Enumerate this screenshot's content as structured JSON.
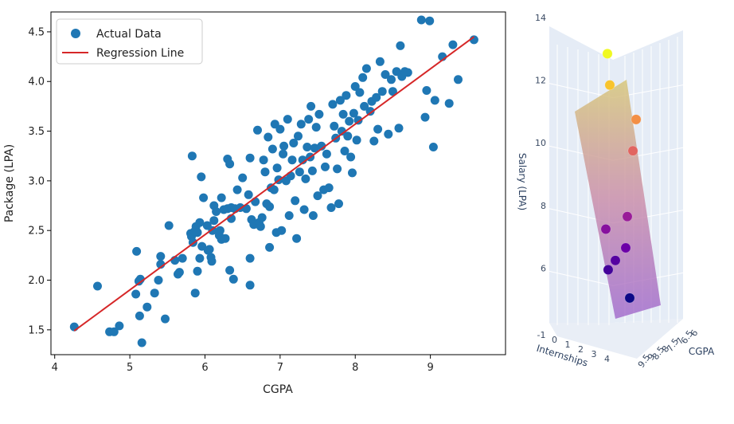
{
  "colors": {
    "points": "#1f77b4",
    "line": "#d62728",
    "axis": "#000000",
    "pane": "#e5ecf6",
    "grid3d": "#ffffff"
  },
  "chart_data": [
    {
      "type": "scatter",
      "title": "",
      "xlabel": "CGPA",
      "ylabel": "Package (LPA)",
      "xlim": [
        3.95,
        10.0
      ],
      "ylim": [
        1.25,
        4.7
      ],
      "x_ticks": [
        "4",
        "5",
        "6",
        "7",
        "8",
        "9"
      ],
      "y_ticks": [
        "1.5",
        "2.0",
        "2.5",
        "3.0",
        "3.5",
        "4.0",
        "4.5"
      ],
      "grid": false,
      "legend": {
        "position": "top-left",
        "entries": [
          {
            "label": "Actual Data",
            "marker": "point"
          },
          {
            "label": "Regression Line",
            "marker": "line"
          }
        ]
      },
      "regression_line": {
        "x": [
          4.26,
          9.58
        ],
        "y": [
          1.49,
          4.45
        ]
      },
      "points": [
        [
          4.26,
          1.53
        ],
        [
          4.57,
          1.94
        ],
        [
          4.73,
          1.48
        ],
        [
          4.79,
          1.48
        ],
        [
          4.86,
          1.54
        ],
        [
          5.09,
          2.29
        ],
        [
          5.12,
          1.99
        ],
        [
          5.14,
          2.01
        ],
        [
          5.08,
          1.86
        ],
        [
          5.13,
          1.64
        ],
        [
          5.16,
          1.37
        ],
        [
          5.23,
          1.73
        ],
        [
          5.33,
          1.87
        ],
        [
          5.41,
          2.24
        ],
        [
          5.41,
          2.16
        ],
        [
          5.38,
          2.0
        ],
        [
          5.47,
          1.61
        ],
        [
          5.52,
          2.55
        ],
        [
          5.6,
          2.2
        ],
        [
          5.64,
          2.06
        ],
        [
          5.66,
          2.08
        ],
        [
          5.7,
          2.22
        ],
        [
          5.83,
          3.25
        ],
        [
          5.81,
          2.47
        ],
        [
          5.82,
          2.44
        ],
        [
          5.84,
          2.38
        ],
        [
          5.86,
          2.49
        ],
        [
          5.88,
          2.54
        ],
        [
          5.9,
          2.48
        ],
        [
          5.93,
          2.58
        ],
        [
          5.9,
          2.09
        ],
        [
          5.87,
          1.87
        ],
        [
          5.93,
          2.22
        ],
        [
          5.96,
          2.34
        ],
        [
          5.95,
          3.04
        ],
        [
          5.98,
          2.83
        ],
        [
          6.03,
          2.55
        ],
        [
          6.04,
          2.3
        ],
        [
          6.06,
          2.31
        ],
        [
          6.08,
          2.23
        ],
        [
          6.1,
          2.5
        ],
        [
          6.09,
          2.19
        ],
        [
          6.12,
          2.75
        ],
        [
          6.12,
          2.6
        ],
        [
          6.15,
          2.69
        ],
        [
          6.19,
          2.45
        ],
        [
          6.2,
          2.5
        ],
        [
          6.22,
          2.41
        ],
        [
          6.22,
          2.83
        ],
        [
          6.25,
          2.71
        ],
        [
          6.27,
          2.42
        ],
        [
          6.3,
          2.72
        ],
        [
          6.3,
          3.22
        ],
        [
          6.33,
          3.17
        ],
        [
          6.35,
          2.62
        ],
        [
          6.35,
          2.73
        ],
        [
          6.33,
          2.1
        ],
        [
          6.38,
          2.01
        ],
        [
          6.4,
          2.72
        ],
        [
          6.43,
          2.91
        ],
        [
          6.47,
          2.73
        ],
        [
          6.5,
          3.03
        ],
        [
          6.55,
          2.72
        ],
        [
          6.58,
          2.86
        ],
        [
          6.6,
          3.23
        ],
        [
          6.6,
          2.22
        ],
        [
          6.6,
          1.95
        ],
        [
          6.62,
          2.61
        ],
        [
          6.65,
          2.56
        ],
        [
          6.67,
          2.79
        ],
        [
          6.7,
          3.51
        ],
        [
          6.72,
          2.58
        ],
        [
          6.74,
          2.54
        ],
        [
          6.76,
          2.63
        ],
        [
          6.78,
          3.21
        ],
        [
          6.8,
          3.09
        ],
        [
          6.82,
          2.77
        ],
        [
          6.84,
          3.44
        ],
        [
          6.86,
          2.33
        ],
        [
          6.86,
          2.74
        ],
        [
          6.88,
          2.93
        ],
        [
          6.9,
          3.32
        ],
        [
          6.92,
          2.91
        ],
        [
          6.93,
          3.57
        ],
        [
          6.95,
          2.48
        ],
        [
          6.96,
          3.13
        ],
        [
          6.98,
          3.01
        ],
        [
          7.0,
          3.52
        ],
        [
          7.02,
          2.5
        ],
        [
          7.04,
          3.27
        ],
        [
          7.05,
          3.35
        ],
        [
          7.08,
          3.0
        ],
        [
          7.1,
          3.62
        ],
        [
          7.12,
          2.65
        ],
        [
          7.14,
          3.05
        ],
        [
          7.16,
          3.21
        ],
        [
          7.18,
          3.38
        ],
        [
          7.2,
          2.8
        ],
        [
          7.22,
          2.42
        ],
        [
          7.24,
          3.45
        ],
        [
          7.26,
          3.09
        ],
        [
          7.28,
          3.57
        ],
        [
          7.3,
          3.21
        ],
        [
          7.32,
          2.71
        ],
        [
          7.34,
          3.02
        ],
        [
          7.36,
          3.34
        ],
        [
          7.38,
          3.62
        ],
        [
          7.4,
          3.24
        ],
        [
          7.41,
          3.75
        ],
        [
          7.43,
          3.1
        ],
        [
          7.44,
          2.65
        ],
        [
          7.46,
          3.33
        ],
        [
          7.48,
          3.54
        ],
        [
          7.5,
          2.85
        ],
        [
          7.52,
          3.67
        ],
        [
          7.55,
          3.35
        ],
        [
          7.58,
          2.91
        ],
        [
          7.6,
          3.14
        ],
        [
          7.62,
          3.27
        ],
        [
          7.65,
          2.93
        ],
        [
          7.68,
          2.73
        ],
        [
          7.7,
          3.77
        ],
        [
          7.72,
          3.55
        ],
        [
          7.74,
          3.43
        ],
        [
          7.76,
          3.12
        ],
        [
          7.78,
          2.77
        ],
        [
          7.8,
          3.81
        ],
        [
          7.82,
          3.5
        ],
        [
          7.84,
          3.67
        ],
        [
          7.86,
          3.3
        ],
        [
          7.88,
          3.86
        ],
        [
          7.9,
          3.45
        ],
        [
          7.92,
          3.6
        ],
        [
          7.94,
          3.24
        ],
        [
          7.96,
          3.08
        ],
        [
          7.98,
          3.68
        ],
        [
          8.0,
          3.95
        ],
        [
          8.02,
          3.41
        ],
        [
          8.04,
          3.61
        ],
        [
          8.06,
          3.89
        ],
        [
          8.1,
          4.04
        ],
        [
          8.12,
          3.75
        ],
        [
          8.15,
          4.13
        ],
        [
          8.2,
          3.7
        ],
        [
          8.22,
          3.8
        ],
        [
          8.25,
          3.4
        ],
        [
          8.28,
          3.84
        ],
        [
          8.3,
          3.52
        ],
        [
          8.33,
          4.2
        ],
        [
          8.36,
          3.9
        ],
        [
          8.4,
          4.07
        ],
        [
          8.44,
          3.47
        ],
        [
          8.48,
          4.02
        ],
        [
          8.5,
          3.9
        ],
        [
          8.55,
          4.1
        ],
        [
          8.58,
          3.53
        ],
        [
          8.6,
          4.36
        ],
        [
          8.62,
          4.05
        ],
        [
          8.66,
          4.1
        ],
        [
          8.7,
          4.09
        ],
        [
          8.88,
          4.62
        ],
        [
          8.93,
          3.64
        ],
        [
          8.95,
          3.91
        ],
        [
          8.99,
          4.61
        ],
        [
          9.04,
          3.34
        ],
        [
          9.06,
          3.81
        ],
        [
          9.16,
          4.25
        ],
        [
          9.25,
          3.78
        ],
        [
          9.3,
          4.37
        ],
        [
          9.37,
          4.02
        ],
        [
          9.58,
          4.42
        ]
      ]
    },
    {
      "type": "scatter3d",
      "title": "",
      "zlabel": "Salary (LPA)",
      "xlabel": "Internships",
      "ylabel": "CGPA",
      "z_ticks": [
        "6",
        "8",
        "10",
        "12",
        "14"
      ],
      "x_ticks": [
        "-1",
        "0",
        "1",
        "2",
        "3",
        "4"
      ],
      "y_ticks": [
        "6",
        "6.5",
        "7",
        "7.5",
        "8",
        "8.5",
        "9",
        "9.5"
      ],
      "colorscale": [
        "#0d0887",
        "#6a00a8",
        "#b12a90",
        "#e16462",
        "#fca636",
        "#f0f921"
      ],
      "plane": "regression surface",
      "points": [
        {
          "salary": 13.1
        },
        {
          "salary": 12.1
        },
        {
          "salary": 11.0
        },
        {
          "salary": 10.0
        },
        {
          "salary": 7.9
        },
        {
          "salary": 7.5
        },
        {
          "salary": 6.9
        },
        {
          "salary": 6.5
        },
        {
          "salary": 6.2
        },
        {
          "salary": 5.3
        }
      ]
    }
  ]
}
